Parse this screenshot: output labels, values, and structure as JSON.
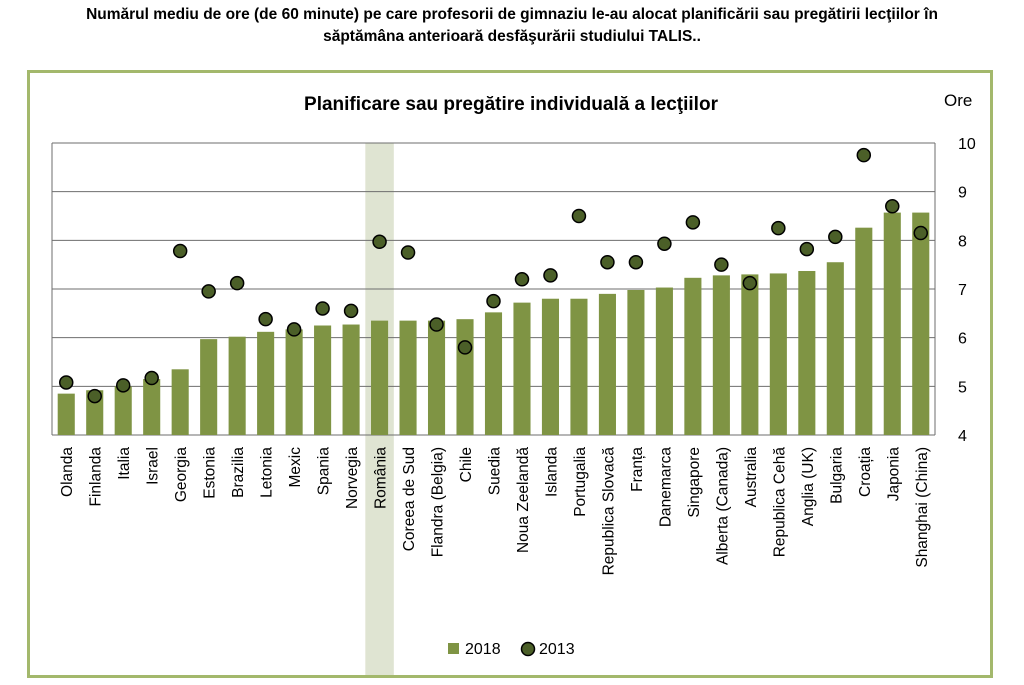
{
  "heading": {
    "line1": "Numărul mediu de ore (de 60 minute) pe care profesorii de gimnaziu le-au alocat planificării sau pregătirii lecţiilor în",
    "line2": "săptămâna anterioară desfăşurării studiului TALIS.."
  },
  "colors": {
    "bar": "#7f9444",
    "dot": "#4b5f28",
    "highlight": "#dfe4d2",
    "frame": "#a3b86c"
  },
  "chart_data": {
    "type": "bar",
    "title": "Planificare sau pregătire individuală a lecţiilor",
    "ylabel": "Ore",
    "ylim": [
      4,
      10
    ],
    "yticks": [
      "4",
      "5",
      "6",
      "7",
      "8",
      "9",
      "10"
    ],
    "grid": true,
    "legend_position": "bottom",
    "highlighted_category": "România",
    "categories": [
      "Olanda",
      "Finlanda",
      "Italia",
      "Israel",
      "Georgia",
      "Estonia",
      "Brazilia",
      "Letonia",
      "Mexic",
      "Spania",
      "Norvegia",
      "România",
      "Coreea de Sud",
      "Flandra (Belgia)",
      "Chile",
      "Suedia",
      "Noua Zeelandă",
      "Islanda",
      "Portugalia",
      "Republica Slovacă",
      "Franța",
      "Danemarca",
      "Singapore",
      "Alberta (Canada)",
      "Australia",
      "Republica Cehă",
      "Anglia (UK)",
      "Bulgaria",
      "Croația",
      "Japonia",
      "Shanghai (China)"
    ],
    "series": [
      {
        "name": "2018",
        "type": "bar",
        "values": [
          4.85,
          4.92,
          5.0,
          5.15,
          5.35,
          5.97,
          6.02,
          6.12,
          6.17,
          6.25,
          6.27,
          6.35,
          6.35,
          6.35,
          6.38,
          6.52,
          6.72,
          6.8,
          6.8,
          6.9,
          6.98,
          7.03,
          7.23,
          7.28,
          7.3,
          7.32,
          7.37,
          7.55,
          8.26,
          8.57,
          8.57
        ]
      },
      {
        "name": "2013",
        "type": "scatter",
        "values": [
          5.08,
          4.8,
          5.02,
          5.17,
          7.78,
          6.95,
          7.12,
          6.38,
          6.17,
          6.6,
          6.55,
          7.97,
          7.75,
          6.27,
          5.8,
          6.75,
          7.2,
          7.28,
          8.5,
          7.55,
          7.55,
          7.93,
          8.37,
          7.5,
          7.12,
          8.25,
          7.82,
          8.07,
          9.75,
          8.7,
          8.15
        ]
      }
    ]
  }
}
